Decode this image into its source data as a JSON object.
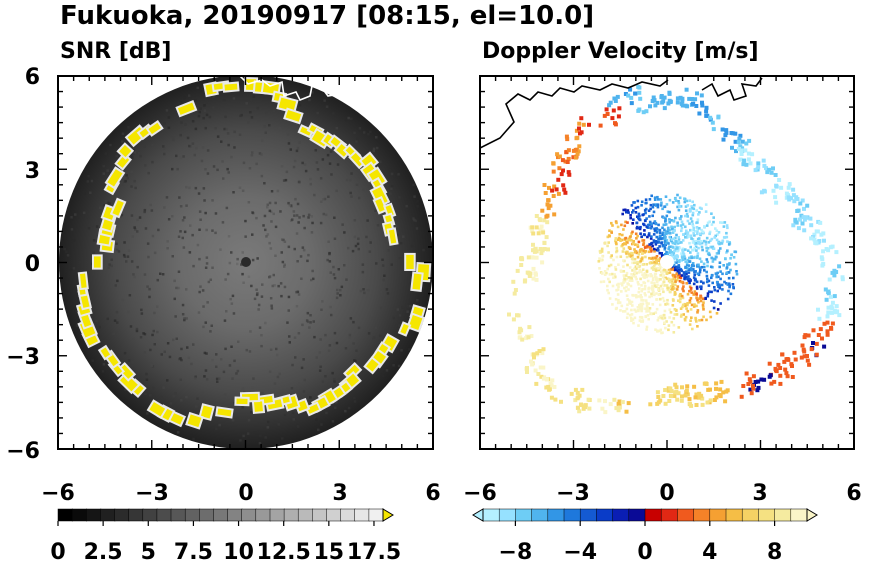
{
  "figure_title": "Fukuoka, 20190917 [08:15, el=10.0]",
  "panels": [
    {
      "title": "SNR [dB]",
      "x_ticks": [
        "−6",
        "−3",
        "0",
        "3",
        "6"
      ],
      "y_ticks": [
        "6",
        "3",
        "0",
        "−3",
        "−6"
      ],
      "colorbar": {
        "ticks": [
          "0",
          "2.5",
          "5",
          "7.5",
          "10",
          "12.5",
          "15",
          "17.5"
        ],
        "range": [
          0,
          18
        ],
        "extend": "max",
        "end_color": "#f5e600",
        "colors": [
          "#000000",
          "#0a0a0a",
          "#151515",
          "#202020",
          "#2b2b2b",
          "#363636",
          "#414141",
          "#4c4c4c",
          "#575757",
          "#626262",
          "#6d6d6d",
          "#787878",
          "#838383",
          "#8e8e8e",
          "#999999",
          "#a4a4a4",
          "#afafaf",
          "#bababa",
          "#c5c5c5",
          "#d0d0d0",
          "#dbdbdb",
          "#e6e6e6",
          "#f0f0f0"
        ]
      }
    },
    {
      "title": "Doppler Velocity [m/s]",
      "x_ticks": [
        "−6",
        "−3",
        "0",
        "3",
        "6"
      ],
      "y_ticks": [
        "6",
        "3",
        "0",
        "−3",
        "−6"
      ],
      "colorbar": {
        "ticks": [
          "−8",
          "−4",
          "0",
          "4",
          "8"
        ],
        "range": [
          -10,
          10
        ],
        "extend": "both",
        "colors": [
          "#b4f0ff",
          "#96e1ff",
          "#6ecdf5",
          "#50b4ee",
          "#3296e6",
          "#1e78dc",
          "#145ad2",
          "#0a3cc8",
          "#0a1eb4",
          "#0a0a96",
          "#c80000",
          "#e12814",
          "#f05a1e",
          "#f58228",
          "#f5a032",
          "#f5be46",
          "#f5d264",
          "#f5e182",
          "#f5eba0",
          "#faf5c8"
        ]
      }
    }
  ],
  "axis_limits": {
    "x": [
      -6,
      6
    ],
    "y": [
      -6,
      6
    ]
  },
  "colors": {
    "echo_yellow": "#f5e600",
    "radar_center_snr": "#2a2a2a",
    "radar_center_doppler": "#ffffff"
  }
}
